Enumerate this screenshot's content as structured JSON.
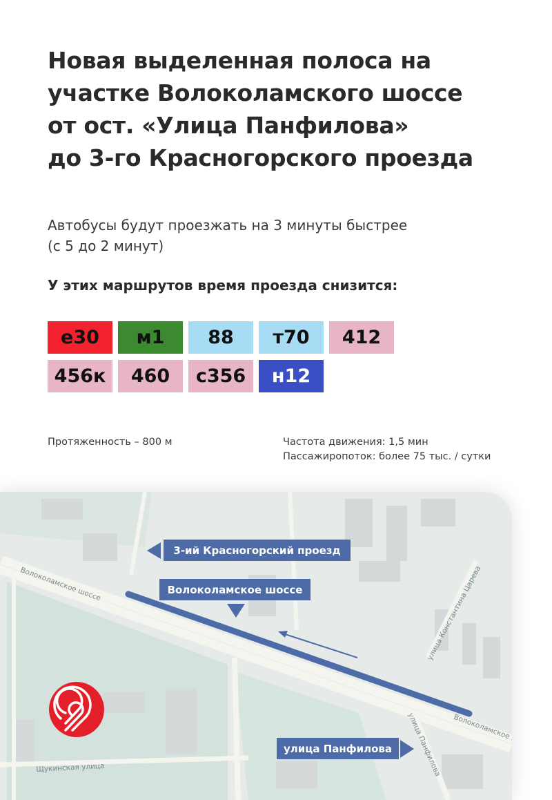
{
  "title": {
    "lines": [
      "Новая выделенная полоса на",
      "участке Волоколамского шоссе",
      "от ост. «Улица Панфилова»",
      "до 3-го Красногорского проезда"
    ]
  },
  "subtitle": {
    "lines": [
      "Автобусы будут проезжать на 3 минуты быстрее",
      "(с 5 до 2 минут)"
    ]
  },
  "routes_heading": "У этих маршрутов время проезда снизится:",
  "routes": [
    {
      "label": "е30",
      "color": "#f2222e",
      "text_color": "#111111"
    },
    {
      "label": "м1",
      "color": "#3b8a2f",
      "text_color": "#111111"
    },
    {
      "label": "88",
      "color": "#a7dcf5",
      "text_color": "#111111"
    },
    {
      "label": "т70",
      "color": "#a7dcf5",
      "text_color": "#111111"
    },
    {
      "label": "412",
      "color": "#e8b5c8",
      "text_color": "#111111"
    },
    {
      "label": "456к",
      "color": "#e8b5c8",
      "text_color": "#111111"
    },
    {
      "label": "460",
      "color": "#e8b5c8",
      "text_color": "#111111"
    },
    {
      "label": "с356",
      "color": "#e8b5c8",
      "text_color": "#111111"
    },
    {
      "label": "н12",
      "color": "#3a4fc4",
      "text_color": "#ffffff"
    }
  ],
  "stats": {
    "length": "Протяженность – 800 м",
    "frequency": "Частота движения: 1,5 мин",
    "passengers": "Пассажиропоток: более 75 тыс. / сутки"
  },
  "map": {
    "labels": {
      "krasnogorsky": "3-ий Красногорский проезд",
      "volokolamskoe": "Волоколамское шоссе",
      "panfilova": "улица Панфилова"
    },
    "streets": {
      "volokolamskoe_left": "Волоколамское шоссе",
      "volokolamskoe_right": "Волоколамское шоссе",
      "tsareva": "улица Константина Царева",
      "panfilova": "улица Панфилова",
      "shchukinskaya": "Щукинская улица"
    },
    "lane_color": "#4d6ba6",
    "logo_color": "#e3202a"
  }
}
